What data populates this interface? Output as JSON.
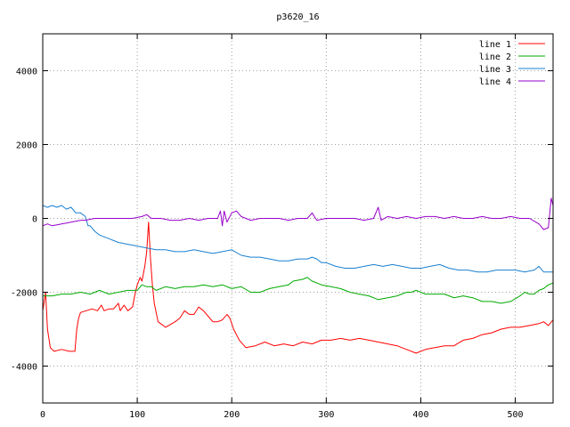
{
  "chart_data": {
    "type": "line",
    "title": "p3620_16",
    "xlabel": "",
    "ylabel": "",
    "xlim": [
      0,
      540
    ],
    "ylim": [
      -5000,
      5000
    ],
    "x_ticks": [
      0,
      100,
      200,
      300,
      400,
      500
    ],
    "y_ticks": [
      -4000,
      -2000,
      0,
      2000,
      4000
    ],
    "grid": true,
    "legend_position": "top-right",
    "series": [
      {
        "name": "line 1",
        "color": "#ff0000",
        "points": [
          [
            0,
            -2500
          ],
          [
            3,
            -2000
          ],
          [
            5,
            -3000
          ],
          [
            8,
            -3500
          ],
          [
            12,
            -3600
          ],
          [
            20,
            -3550
          ],
          [
            28,
            -3600
          ],
          [
            34,
            -3600
          ],
          [
            36,
            -3000
          ],
          [
            38,
            -2700
          ],
          [
            40,
            -2550
          ],
          [
            46,
            -2500
          ],
          [
            52,
            -2450
          ],
          [
            58,
            -2500
          ],
          [
            62,
            -2350
          ],
          [
            65,
            -2500
          ],
          [
            70,
            -2450
          ],
          [
            75,
            -2450
          ],
          [
            80,
            -2300
          ],
          [
            82,
            -2500
          ],
          [
            86,
            -2350
          ],
          [
            90,
            -2500
          ],
          [
            95,
            -2400
          ],
          [
            98,
            -2000
          ],
          [
            100,
            -1800
          ],
          [
            103,
            -1600
          ],
          [
            105,
            -1700
          ],
          [
            108,
            -1300
          ],
          [
            110,
            -900
          ],
          [
            112,
            -100
          ],
          [
            114,
            -1100
          ],
          [
            116,
            -1800
          ],
          [
            118,
            -2300
          ],
          [
            122,
            -2800
          ],
          [
            130,
            -2950
          ],
          [
            140,
            -2800
          ],
          [
            145,
            -2700
          ],
          [
            150,
            -2500
          ],
          [
            155,
            -2600
          ],
          [
            160,
            -2600
          ],
          [
            165,
            -2400
          ],
          [
            170,
            -2500
          ],
          [
            175,
            -2650
          ],
          [
            180,
            -2800
          ],
          [
            185,
            -2800
          ],
          [
            190,
            -2750
          ],
          [
            195,
            -2600
          ],
          [
            198,
            -2700
          ],
          [
            202,
            -3000
          ],
          [
            208,
            -3300
          ],
          [
            215,
            -3500
          ],
          [
            225,
            -3450
          ],
          [
            235,
            -3350
          ],
          [
            245,
            -3450
          ],
          [
            255,
            -3400
          ],
          [
            265,
            -3450
          ],
          [
            275,
            -3350
          ],
          [
            285,
            -3400
          ],
          [
            295,
            -3300
          ],
          [
            305,
            -3300
          ],
          [
            315,
            -3250
          ],
          [
            325,
            -3300
          ],
          [
            335,
            -3250
          ],
          [
            345,
            -3300
          ],
          [
            355,
            -3350
          ],
          [
            365,
            -3400
          ],
          [
            375,
            -3450
          ],
          [
            385,
            -3550
          ],
          [
            395,
            -3650
          ],
          [
            405,
            -3550
          ],
          [
            415,
            -3500
          ],
          [
            425,
            -3450
          ],
          [
            435,
            -3450
          ],
          [
            445,
            -3300
          ],
          [
            455,
            -3250
          ],
          [
            465,
            -3150
          ],
          [
            475,
            -3100
          ],
          [
            485,
            -3000
          ],
          [
            495,
            -2950
          ],
          [
            505,
            -2950
          ],
          [
            515,
            -2900
          ],
          [
            525,
            -2850
          ],
          [
            530,
            -2800
          ],
          [
            535,
            -2900
          ],
          [
            540,
            -2750
          ]
        ]
      },
      {
        "name": "line 2",
        "color": "#00aa00",
        "points": [
          [
            0,
            -2100
          ],
          [
            10,
            -2100
          ],
          [
            20,
            -2050
          ],
          [
            30,
            -2050
          ],
          [
            40,
            -2000
          ],
          [
            50,
            -2050
          ],
          [
            60,
            -1950
          ],
          [
            70,
            -2050
          ],
          [
            80,
            -2000
          ],
          [
            90,
            -1950
          ],
          [
            100,
            -1950
          ],
          [
            105,
            -1800
          ],
          [
            110,
            -1850
          ],
          [
            115,
            -1850
          ],
          [
            120,
            -1950
          ],
          [
            130,
            -1850
          ],
          [
            140,
            -1900
          ],
          [
            150,
            -1850
          ],
          [
            160,
            -1850
          ],
          [
            170,
            -1800
          ],
          [
            180,
            -1850
          ],
          [
            190,
            -1800
          ],
          [
            200,
            -1900
          ],
          [
            210,
            -1850
          ],
          [
            220,
            -2000
          ],
          [
            230,
            -2000
          ],
          [
            240,
            -1900
          ],
          [
            250,
            -1850
          ],
          [
            260,
            -1800
          ],
          [
            265,
            -1700
          ],
          [
            275,
            -1650
          ],
          [
            280,
            -1600
          ],
          [
            285,
            -1700
          ],
          [
            295,
            -1800
          ],
          [
            305,
            -1850
          ],
          [
            315,
            -1900
          ],
          [
            325,
            -2000
          ],
          [
            335,
            -2050
          ],
          [
            345,
            -2100
          ],
          [
            355,
            -2200
          ],
          [
            365,
            -2150
          ],
          [
            375,
            -2100
          ],
          [
            385,
            -2000
          ],
          [
            390,
            -2000
          ],
          [
            395,
            -1950
          ],
          [
            405,
            -2050
          ],
          [
            415,
            -2050
          ],
          [
            425,
            -2050
          ],
          [
            435,
            -2150
          ],
          [
            445,
            -2100
          ],
          [
            455,
            -2150
          ],
          [
            465,
            -2250
          ],
          [
            475,
            -2250
          ],
          [
            485,
            -2300
          ],
          [
            495,
            -2250
          ],
          [
            505,
            -2100
          ],
          [
            510,
            -2000
          ],
          [
            515,
            -2050
          ],
          [
            520,
            -2050
          ],
          [
            525,
            -1950
          ],
          [
            530,
            -1900
          ],
          [
            535,
            -1800
          ],
          [
            540,
            -1750
          ]
        ]
      },
      {
        "name": "line 3",
        "color": "#1a80d0",
        "points": [
          [
            0,
            350
          ],
          [
            5,
            300
          ],
          [
            10,
            350
          ],
          [
            15,
            300
          ],
          [
            20,
            350
          ],
          [
            25,
            250
          ],
          [
            30,
            300
          ],
          [
            35,
            150
          ],
          [
            40,
            150
          ],
          [
            45,
            50
          ],
          [
            48,
            -200
          ],
          [
            50,
            -200
          ],
          [
            55,
            -350
          ],
          [
            60,
            -450
          ],
          [
            65,
            -500
          ],
          [
            70,
            -550
          ],
          [
            80,
            -650
          ],
          [
            90,
            -700
          ],
          [
            100,
            -750
          ],
          [
            110,
            -800
          ],
          [
            120,
            -850
          ],
          [
            130,
            -850
          ],
          [
            140,
            -900
          ],
          [
            150,
            -900
          ],
          [
            160,
            -850
          ],
          [
            170,
            -900
          ],
          [
            180,
            -950
          ],
          [
            190,
            -900
          ],
          [
            200,
            -850
          ],
          [
            210,
            -1000
          ],
          [
            220,
            -1050
          ],
          [
            230,
            -1050
          ],
          [
            240,
            -1100
          ],
          [
            250,
            -1150
          ],
          [
            260,
            -1150
          ],
          [
            270,
            -1100
          ],
          [
            280,
            -1100
          ],
          [
            285,
            -1050
          ],
          [
            290,
            -1100
          ],
          [
            295,
            -1200
          ],
          [
            300,
            -1200
          ],
          [
            310,
            -1300
          ],
          [
            320,
            -1350
          ],
          [
            330,
            -1350
          ],
          [
            340,
            -1300
          ],
          [
            350,
            -1250
          ],
          [
            360,
            -1300
          ],
          [
            370,
            -1250
          ],
          [
            380,
            -1300
          ],
          [
            390,
            -1350
          ],
          [
            400,
            -1350
          ],
          [
            410,
            -1300
          ],
          [
            420,
            -1250
          ],
          [
            430,
            -1350
          ],
          [
            440,
            -1400
          ],
          [
            450,
            -1400
          ],
          [
            460,
            -1450
          ],
          [
            470,
            -1450
          ],
          [
            480,
            -1400
          ],
          [
            490,
            -1400
          ],
          [
            500,
            -1400
          ],
          [
            510,
            -1450
          ],
          [
            520,
            -1400
          ],
          [
            525,
            -1300
          ],
          [
            530,
            -1450
          ],
          [
            540,
            -1450
          ]
        ]
      },
      {
        "name": "line 4",
        "color": "#9900cc",
        "points": [
          [
            0,
            -200
          ],
          [
            5,
            -150
          ],
          [
            10,
            -200
          ],
          [
            20,
            -150
          ],
          [
            30,
            -100
          ],
          [
            40,
            -50
          ],
          [
            45,
            -50
          ],
          [
            55,
            0
          ],
          [
            65,
            0
          ],
          [
            75,
            0
          ],
          [
            85,
            0
          ],
          [
            95,
            0
          ],
          [
            105,
            50
          ],
          [
            110,
            100
          ],
          [
            115,
            0
          ],
          [
            125,
            0
          ],
          [
            135,
            -50
          ],
          [
            145,
            -50
          ],
          [
            155,
            0
          ],
          [
            165,
            -50
          ],
          [
            175,
            0
          ],
          [
            185,
            0
          ],
          [
            188,
            200
          ],
          [
            190,
            -200
          ],
          [
            192,
            200
          ],
          [
            195,
            -100
          ],
          [
            200,
            150
          ],
          [
            205,
            200
          ],
          [
            210,
            50
          ],
          [
            220,
            -50
          ],
          [
            230,
            0
          ],
          [
            240,
            0
          ],
          [
            250,
            0
          ],
          [
            260,
            -50
          ],
          [
            270,
            0
          ],
          [
            280,
            0
          ],
          [
            285,
            150
          ],
          [
            290,
            -50
          ],
          [
            300,
            0
          ],
          [
            310,
            0
          ],
          [
            320,
            0
          ],
          [
            330,
            0
          ],
          [
            340,
            -50
          ],
          [
            350,
            0
          ],
          [
            355,
            300
          ],
          [
            358,
            -50
          ],
          [
            365,
            50
          ],
          [
            375,
            0
          ],
          [
            385,
            50
          ],
          [
            395,
            0
          ],
          [
            405,
            50
          ],
          [
            415,
            50
          ],
          [
            425,
            0
          ],
          [
            435,
            50
          ],
          [
            445,
            0
          ],
          [
            455,
            0
          ],
          [
            465,
            50
          ],
          [
            475,
            0
          ],
          [
            485,
            0
          ],
          [
            495,
            50
          ],
          [
            505,
            0
          ],
          [
            515,
            0
          ],
          [
            525,
            -150
          ],
          [
            530,
            -300
          ],
          [
            535,
            -250
          ],
          [
            538,
            550
          ],
          [
            540,
            350
          ]
        ]
      }
    ]
  }
}
